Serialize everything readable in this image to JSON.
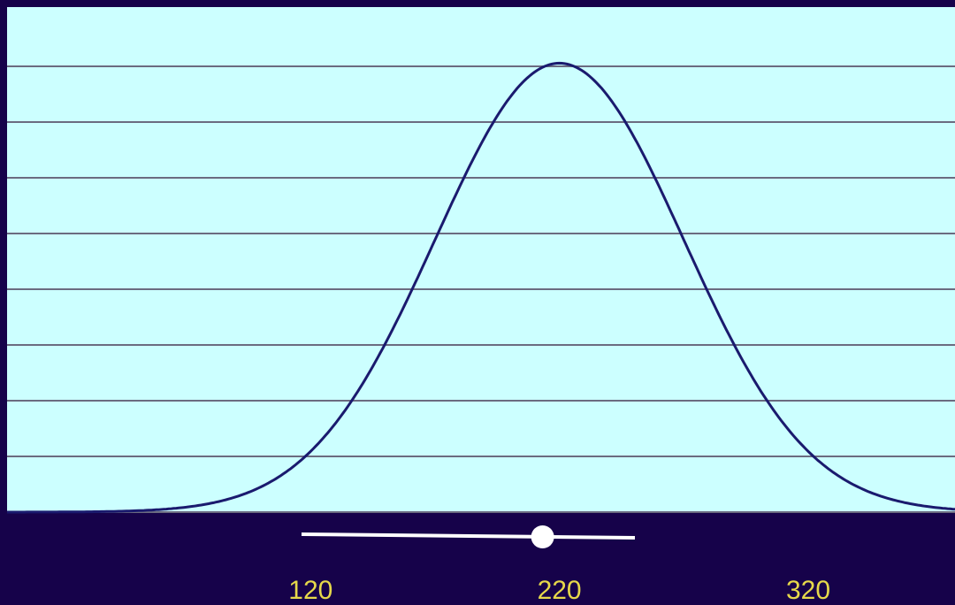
{
  "colors": {
    "background": "#16024a",
    "plot_background": "#ccffff",
    "gridline": "#6b6b80",
    "curve": "#1a1a6e",
    "tick_label": "#e6d84a",
    "slider_track": "#ffffff",
    "slider_knob": "#ffffff"
  },
  "slider": {
    "value": 220,
    "range": [
      100,
      365
    ]
  },
  "chart_data": {
    "type": "line",
    "title": "",
    "xlabel": "",
    "ylabel": "",
    "distribution": "normal",
    "mean": 220,
    "sd": 50,
    "xlim": [
      -2,
      379
    ],
    "ylim": [
      0,
      1.125
    ],
    "y_gridlines": 8,
    "grid": true,
    "x_tick_labels": [
      "120",
      "220",
      "320"
    ],
    "x_ticks": [
      120,
      220,
      320
    ],
    "series": [
      {
        "x": [
          -2,
          20,
          40,
          60,
          80,
          100,
          110,
          120,
          130,
          140,
          150,
          160,
          170,
          180,
          190,
          200,
          210,
          220,
          230,
          240,
          250,
          260,
          270,
          280,
          290,
          300,
          310,
          320,
          330,
          340,
          360,
          379
        ],
        "values": [
          0.0,
          0.0003,
          0.0016,
          0.006,
          0.0198,
          0.0561,
          0.0889,
          0.1353,
          0.1979,
          0.278,
          0.3753,
          0.4868,
          0.6065,
          0.7261,
          0.8353,
          0.9231,
          0.9802,
          1.0,
          0.9802,
          0.9231,
          0.8353,
          0.7261,
          0.6065,
          0.4868,
          0.3753,
          0.278,
          0.1979,
          0.1353,
          0.0889,
          0.0561,
          0.0198,
          0.0063
        ]
      }
    ]
  }
}
